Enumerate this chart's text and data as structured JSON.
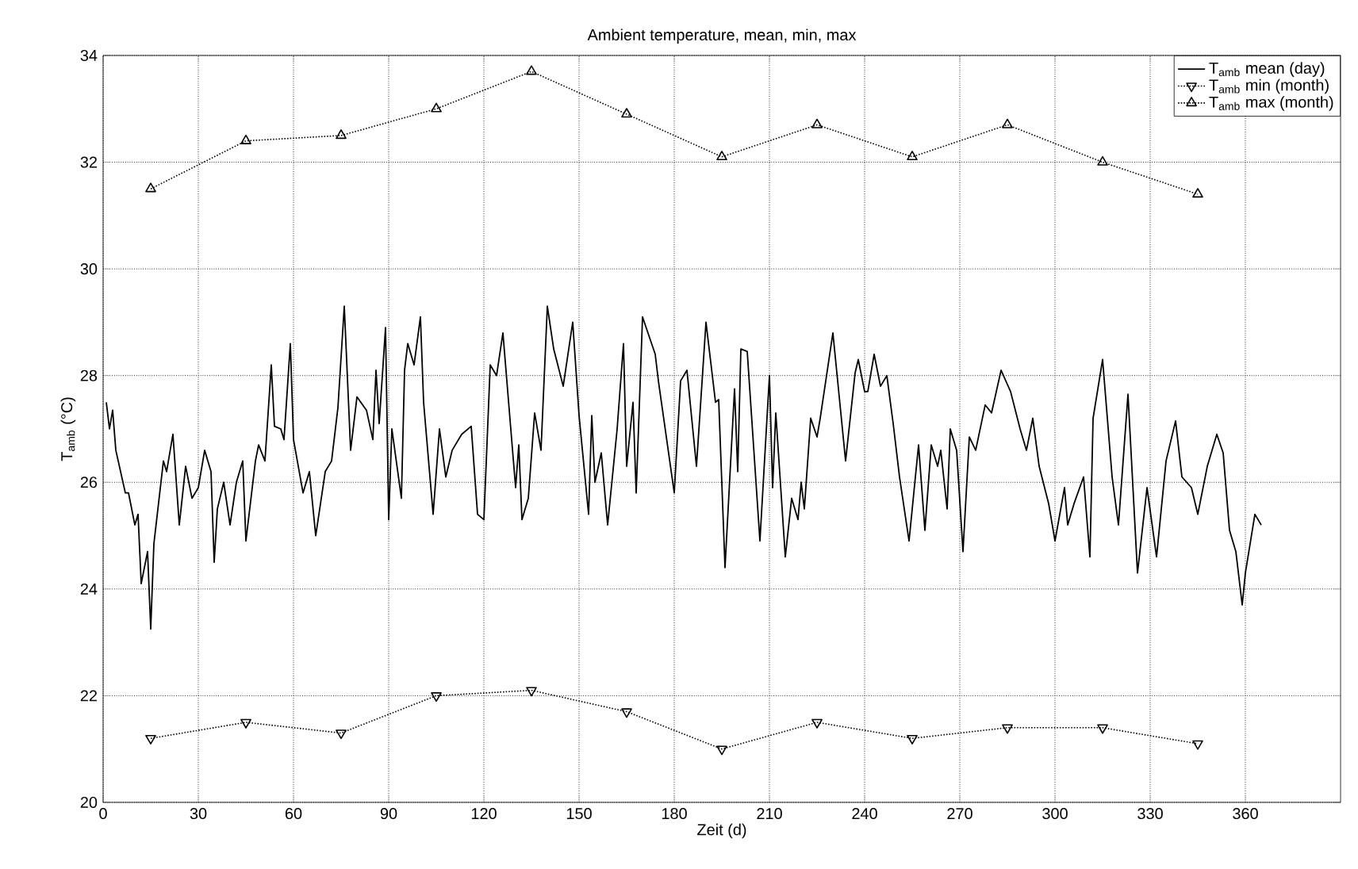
{
  "chart_data": {
    "type": "line",
    "title": "Ambient temperature, mean, min, max",
    "xlabel": "Zeit (d)",
    "ylabel": "T$_{amb}$ (°C)",
    "xlim": [
      0,
      390
    ],
    "xticks": [
      0,
      30,
      60,
      90,
      120,
      150,
      180,
      210,
      240,
      270,
      300,
      330,
      360
    ],
    "ylim": [
      20,
      34
    ],
    "yticks": [
      20,
      22,
      24,
      26,
      28,
      30,
      32,
      34
    ],
    "grid": true,
    "legend": "top right",
    "series": [
      {
        "name": "T$_{amb}$ mean (day)",
        "color": "#000000",
        "marker": "none",
        "line_style": "solid",
        "x": [
          1,
          2,
          3,
          4,
          7,
          8,
          10,
          11,
          12,
          14,
          15,
          16,
          19,
          20,
          22,
          24,
          26,
          28,
          30,
          32,
          34,
          35,
          36,
          38,
          40,
          42,
          44,
          45,
          48,
          49,
          51,
          53,
          54,
          56,
          57,
          59,
          60,
          63,
          65,
          67,
          70,
          72,
          74,
          76,
          78,
          80,
          83,
          85,
          86,
          87,
          89,
          90,
          91,
          94,
          95,
          96,
          98,
          100,
          101,
          104,
          106,
          108,
          110,
          113,
          116,
          118,
          120,
          122,
          124,
          126,
          130,
          131,
          132,
          134,
          136,
          138,
          140,
          142,
          145,
          148,
          150,
          153,
          154,
          155,
          157,
          159,
          162,
          164,
          165,
          167,
          168,
          170,
          174,
          175,
          180,
          182,
          184,
          187,
          190,
          193,
          194,
          196,
          199,
          200,
          201,
          203,
          207,
          210,
          211,
          212,
          215,
          217,
          219,
          220,
          221,
          223,
          225,
          226,
          230,
          234,
          237,
          238,
          240,
          241,
          243,
          245,
          247,
          249,
          251,
          254,
          257,
          259,
          261,
          263,
          264,
          266,
          267,
          269,
          271,
          273,
          275,
          278,
          280,
          283,
          286,
          289,
          291,
          293,
          295,
          298,
          300,
          303,
          304,
          306,
          309,
          311,
          312,
          315,
          318,
          320,
          323,
          326,
          329,
          332,
          335,
          338,
          340,
          343,
          345,
          348,
          351,
          353,
          355,
          357,
          359,
          360,
          363,
          365
        ],
        "values": [
          27.5,
          27.0,
          27.35,
          26.6,
          25.8,
          25.8,
          25.2,
          25.4,
          24.1,
          24.7,
          23.25,
          24.85,
          26.4,
          26.2,
          26.9,
          25.2,
          26.3,
          25.7,
          25.9,
          26.6,
          26.2,
          24.5,
          25.5,
          26.0,
          25.2,
          26.0,
          26.4,
          24.9,
          26.4,
          26.7,
          26.4,
          28.2,
          27.05,
          27.0,
          26.8,
          28.6,
          26.8,
          25.8,
          26.2,
          25.0,
          26.2,
          26.4,
          27.4,
          29.3,
          26.6,
          27.6,
          27.35,
          26.8,
          28.1,
          27.1,
          28.9,
          25.3,
          27.0,
          25.7,
          28.1,
          28.6,
          28.2,
          29.1,
          27.5,
          25.4,
          27.0,
          26.1,
          26.6,
          26.9,
          27.05,
          25.4,
          25.3,
          28.2,
          28.0,
          28.8,
          25.9,
          26.7,
          25.3,
          25.7,
          27.3,
          26.6,
          29.3,
          28.5,
          27.8,
          29.0,
          27.25,
          25.4,
          27.25,
          26.0,
          26.55,
          25.2,
          27.0,
          28.6,
          26.3,
          27.5,
          25.8,
          29.1,
          28.4,
          27.9,
          25.8,
          27.9,
          28.1,
          26.3,
          29.0,
          27.5,
          27.55,
          24.4,
          27.75,
          26.2,
          28.5,
          28.45,
          24.9,
          28.0,
          25.9,
          27.3,
          24.6,
          25.7,
          25.3,
          26.0,
          25.5,
          27.2,
          26.85,
          27.2,
          28.8,
          26.4,
          28.05,
          28.3,
          27.7,
          27.7,
          28.4,
          27.8,
          28.0,
          27.1,
          26.1,
          24.9,
          26.7,
          25.1,
          26.7,
          26.3,
          26.6,
          25.5,
          27.0,
          26.6,
          24.7,
          26.85,
          26.6,
          27.45,
          27.3,
          28.1,
          27.7,
          27.0,
          26.6,
          27.2,
          26.3,
          25.6,
          24.9,
          25.9,
          25.2,
          25.6,
          26.1,
          24.6,
          27.2,
          28.3,
          26.1,
          25.2,
          27.65,
          24.3,
          25.9,
          24.6,
          26.4,
          27.15,
          26.1,
          25.9,
          25.4,
          26.3,
          26.9,
          26.55,
          25.1,
          24.7,
          23.7,
          24.3,
          25.4,
          25.2
        ]
      },
      {
        "name": "T$_{amb}$ min (month)",
        "color": "#000000",
        "marker": "triangle_down",
        "line_style": "dotted",
        "x": [
          15,
          45,
          75,
          105,
          135,
          165,
          195,
          225,
          255,
          285,
          315,
          345
        ],
        "values": [
          21.2,
          21.5,
          21.3,
          22.0,
          22.1,
          21.7,
          21.0,
          21.5,
          21.2,
          21.4,
          21.4,
          21.1
        ]
      },
      {
        "name": "T$_{amb}$ max (month)",
        "color": "#000000",
        "marker": "triangle",
        "line_style": "dotted",
        "x": [
          15,
          45,
          75,
          105,
          135,
          165,
          195,
          225,
          255,
          285,
          315,
          345
        ],
        "values": [
          31.5,
          32.4,
          32.5,
          33.0,
          33.7,
          32.9,
          32.1,
          32.7,
          32.1,
          32.7,
          32.0,
          31.4
        ]
      }
    ]
  }
}
